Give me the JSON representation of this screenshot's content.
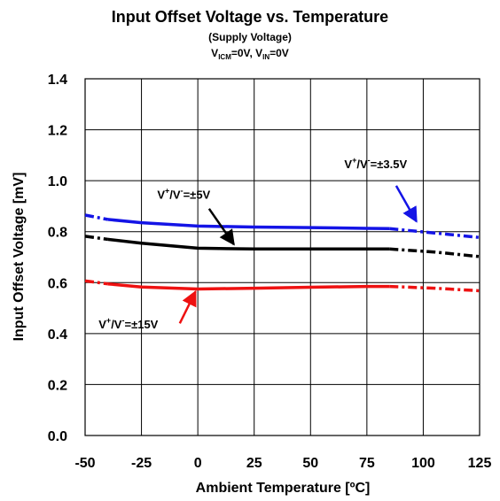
{
  "chart_data": {
    "type": "line",
    "title": "Input Offset Voltage vs. Temperature",
    "subtitle_1": "(Supply Voltage)",
    "subtitle_2": {
      "p1": "V",
      "p1_sub": "ICM",
      "p2": "=0V, V",
      "p2_sub": "IN",
      "p3": "=0V"
    },
    "xlabel": "Ambient Temperature [ºC]",
    "ylabel": "Input Offset Voltage [mV]",
    "xlim": [
      -50,
      125
    ],
    "ylim": [
      0,
      1.4
    ],
    "x_ticks": [
      -50,
      -25,
      0,
      25,
      50,
      75,
      100,
      125
    ],
    "y_ticks": [
      0.0,
      0.2,
      0.4,
      0.6,
      0.8,
      1.0,
      1.2,
      1.4
    ],
    "x_tick_labels": [
      "-50",
      "-25",
      "0",
      "25",
      "50",
      "75",
      "100",
      "125"
    ],
    "y_tick_labels": [
      "0.0",
      "0.2",
      "0.4",
      "0.6",
      "0.8",
      "1.0",
      "1.2",
      "1.4"
    ],
    "grid": true,
    "series": [
      {
        "name": "V+/V-=±3.5V",
        "color": "#1414e6",
        "solid": [
          [
            -40,
            0.848
          ],
          [
            -25,
            0.835
          ],
          [
            0,
            0.822
          ],
          [
            25,
            0.818
          ],
          [
            50,
            0.816
          ],
          [
            75,
            0.813
          ],
          [
            85,
            0.812
          ]
        ],
        "dashed_low": [
          [
            -50,
            0.865
          ],
          [
            -40,
            0.848
          ]
        ],
        "dashed_high": [
          [
            85,
            0.812
          ],
          [
            105,
            0.795
          ],
          [
            125,
            0.777
          ]
        ]
      },
      {
        "name": "V+/V-=±5V",
        "color": "#000000",
        "solid": [
          [
            -40,
            0.77
          ],
          [
            -25,
            0.755
          ],
          [
            0,
            0.735
          ],
          [
            25,
            0.732
          ],
          [
            50,
            0.732
          ],
          [
            75,
            0.732
          ],
          [
            85,
            0.732
          ]
        ],
        "dashed_low": [
          [
            -50,
            0.782
          ],
          [
            -40,
            0.77
          ]
        ],
        "dashed_high": [
          [
            85,
            0.732
          ],
          [
            105,
            0.72
          ],
          [
            125,
            0.702
          ]
        ]
      },
      {
        "name": "V+/V-=±15V",
        "color": "#ee1111",
        "solid": [
          [
            -40,
            0.595
          ],
          [
            -25,
            0.583
          ],
          [
            0,
            0.575
          ],
          [
            25,
            0.578
          ],
          [
            50,
            0.582
          ],
          [
            75,
            0.585
          ],
          [
            85,
            0.585
          ]
        ],
        "dashed_low": [
          [
            -50,
            0.607
          ],
          [
            -40,
            0.595
          ]
        ],
        "dashed_high": [
          [
            85,
            0.585
          ],
          [
            105,
            0.578
          ],
          [
            125,
            0.568
          ]
        ]
      }
    ],
    "annotations": [
      {
        "series": "V+/V-=±3.5V",
        "parts": [
          "V",
          "+",
          "/V",
          "-",
          "=±3.5V"
        ],
        "color": "#1414e6",
        "text_at": [
          65,
          1.05
        ],
        "arrow_from": [
          88,
          0.98
        ],
        "arrow_to": [
          97,
          0.84
        ]
      },
      {
        "series": "V+/V-=±5V",
        "parts": [
          "V",
          "+",
          "/V",
          "-",
          "=±5V"
        ],
        "color": "#000000",
        "text_at": [
          -18,
          0.93
        ],
        "arrow_from": [
          5,
          0.89
        ],
        "arrow_to": [
          16,
          0.75
        ]
      },
      {
        "series": "V+/V-=±15V",
        "parts": [
          "V",
          "+",
          "/V",
          "-",
          "=±15V"
        ],
        "color": "#ee1111",
        "text_at": [
          -44,
          0.42
        ],
        "arrow_from": [
          -8,
          0.44
        ],
        "arrow_to": [
          -1,
          0.565
        ]
      }
    ]
  }
}
